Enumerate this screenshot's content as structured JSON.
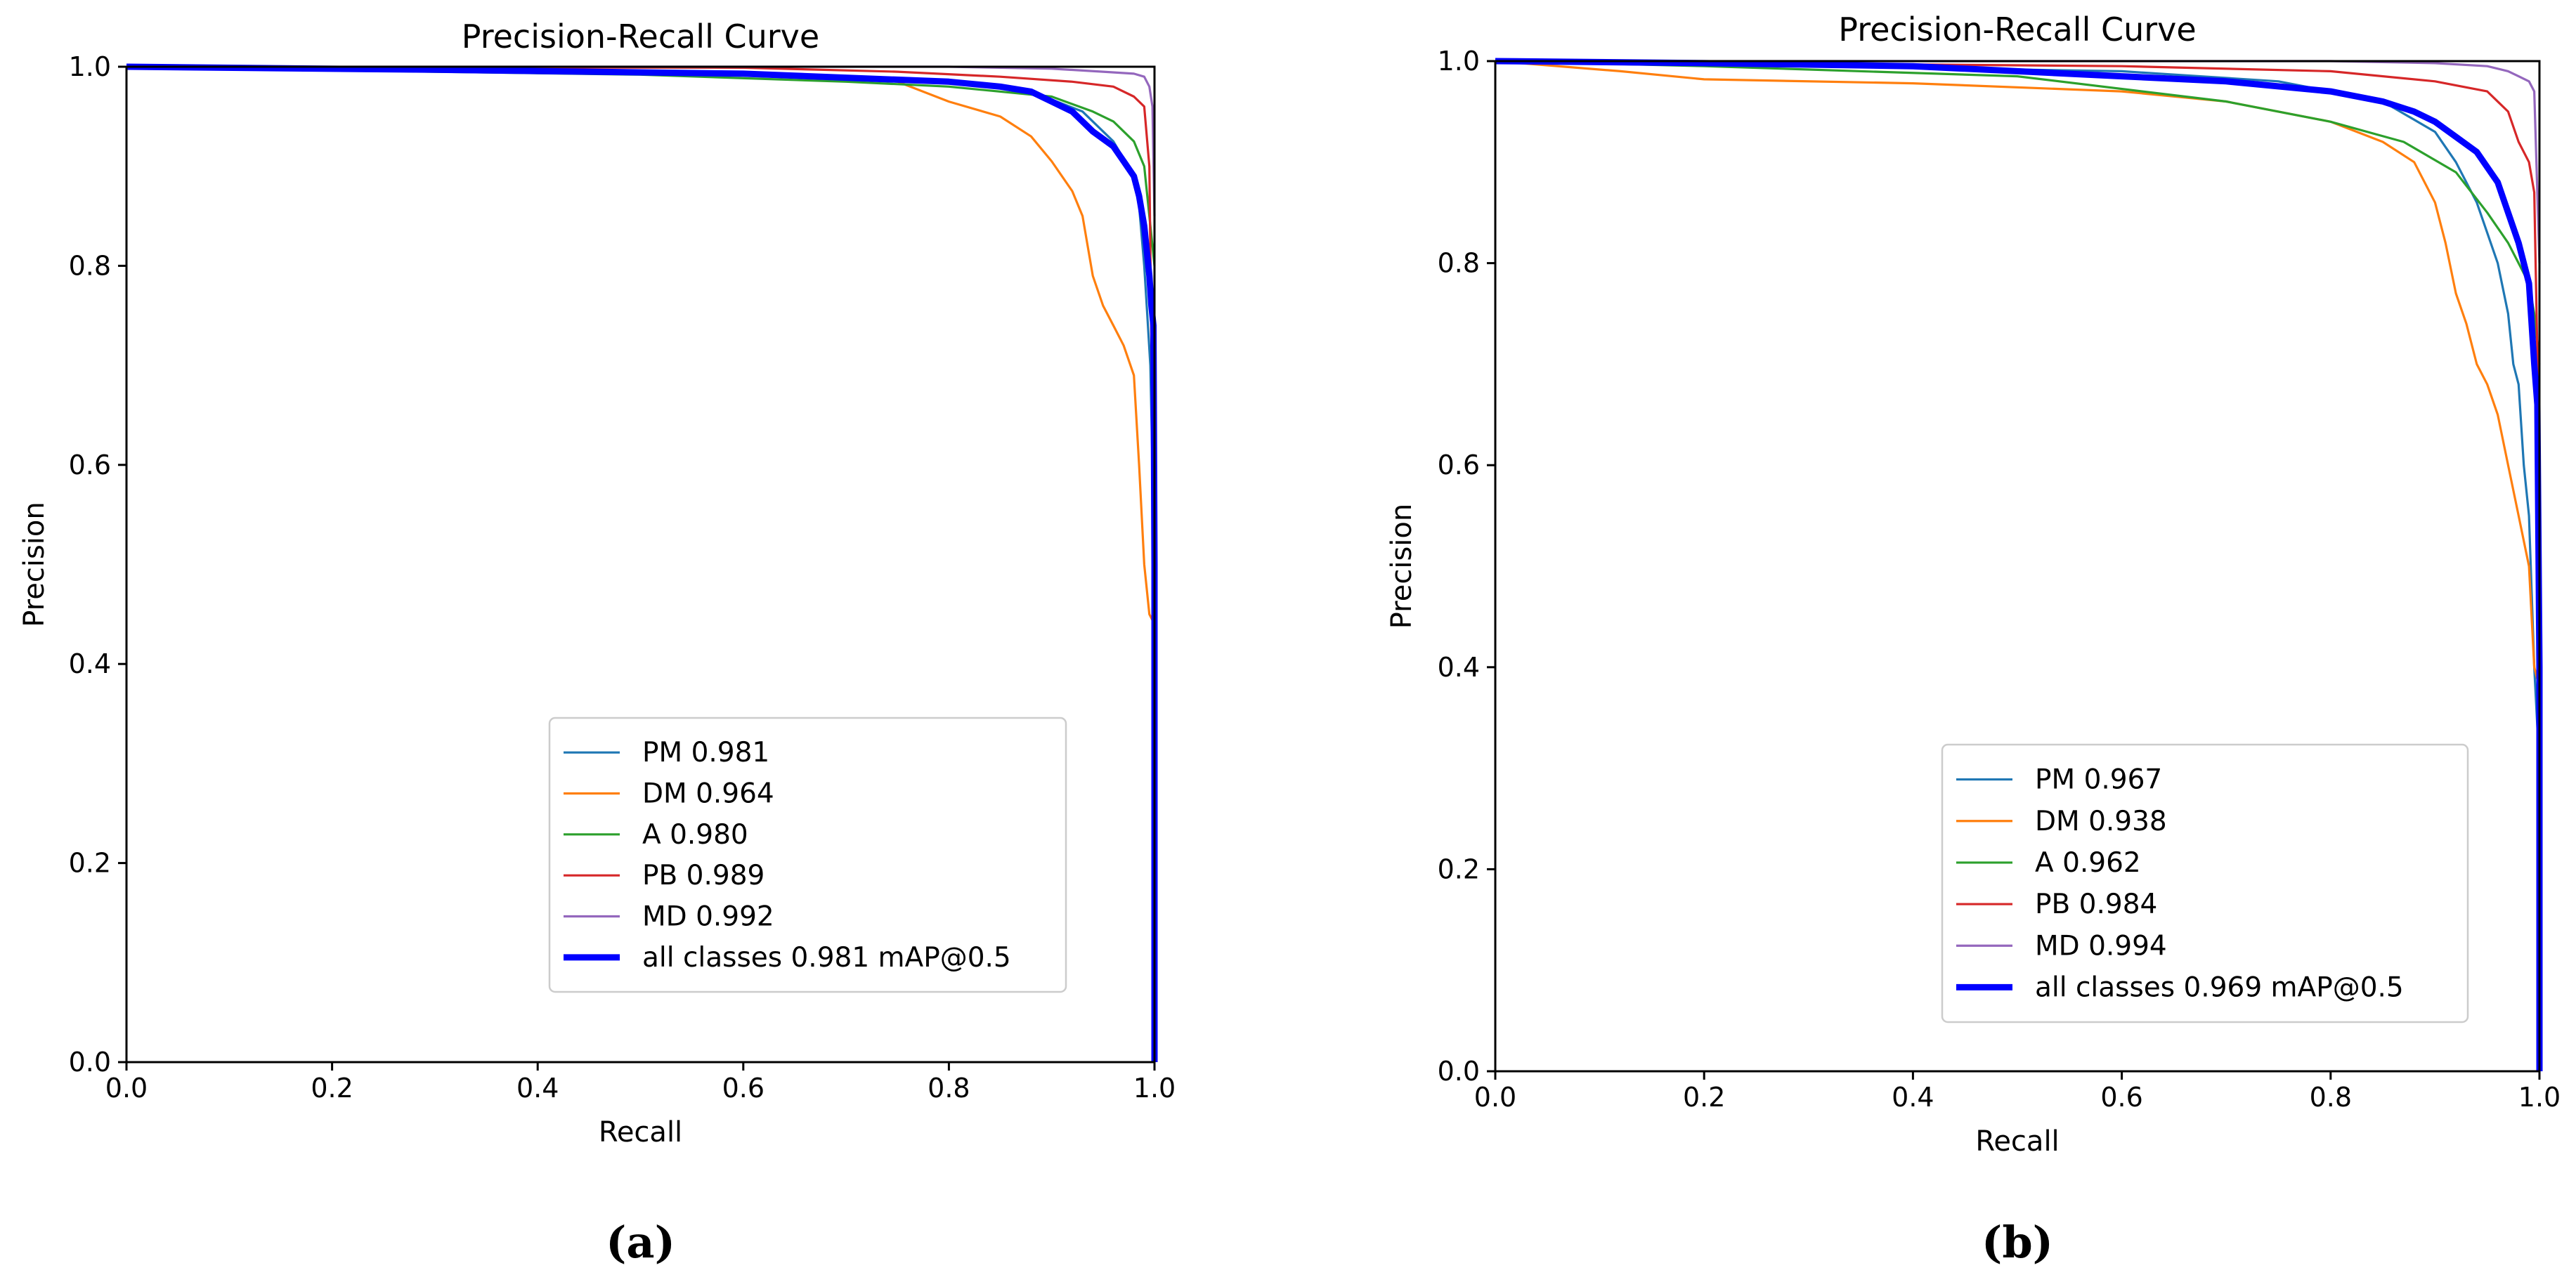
{
  "chart_data": [
    {
      "type": "line",
      "id": "a",
      "title": "Precision-Recall Curve",
      "xlabel": "Recall",
      "ylabel": "Precision",
      "xlim": [
        0,
        1
      ],
      "ylim": [
        0,
        1
      ],
      "x_ticks": [
        "0.0",
        "0.2",
        "0.4",
        "0.6",
        "0.8",
        "1.0"
      ],
      "y_ticks": [
        "0.0",
        "0.2",
        "0.4",
        "0.6",
        "0.8",
        "1.0"
      ],
      "legend_position": "lower-right",
      "caption": "(a)",
      "series": [
        {
          "name": "PM 0.981",
          "color": "#1f77b4",
          "width": "thin",
          "x": [
            0,
            0.3,
            0.6,
            0.8,
            0.88,
            0.93,
            0.96,
            0.98,
            0.985,
            0.99,
            0.993,
            0.996,
            0.998,
            1.0,
            1.0
          ],
          "y": [
            1.0,
            0.997,
            0.993,
            0.985,
            0.975,
            0.955,
            0.925,
            0.89,
            0.86,
            0.8,
            0.75,
            0.7,
            0.6,
            0.3,
            0
          ]
        },
        {
          "name": "DM 0.964",
          "color": "#ff7f0e",
          "width": "thin",
          "x": [
            0,
            0.1,
            0.4,
            0.7,
            0.75,
            0.8,
            0.85,
            0.88,
            0.9,
            0.92,
            0.93,
            0.935,
            0.94,
            0.95,
            0.96,
            0.97,
            0.98,
            0.985,
            0.99,
            0.995,
            1.0
          ],
          "y": [
            1.0,
            0.998,
            0.995,
            0.99,
            0.985,
            0.965,
            0.95,
            0.93,
            0.905,
            0.875,
            0.85,
            0.82,
            0.79,
            0.76,
            0.74,
            0.72,
            0.69,
            0.6,
            0.5,
            0.45,
            0.44
          ]
        },
        {
          "name": "A 0.980",
          "color": "#2ca02c",
          "width": "thin",
          "x": [
            0,
            0.3,
            0.5,
            0.7,
            0.8,
            0.9,
            0.94,
            0.96,
            0.98,
            0.99,
            0.995,
            1.0
          ],
          "y": [
            1.0,
            0.995,
            0.992,
            0.985,
            0.98,
            0.97,
            0.955,
            0.945,
            0.925,
            0.9,
            0.85,
            0.8
          ]
        },
        {
          "name": "PB 0.989",
          "color": "#d62728",
          "width": "thin",
          "x": [
            0,
            0.6,
            0.75,
            0.85,
            0.92,
            0.96,
            0.98,
            0.99,
            0.995,
            1.0
          ],
          "y": [
            1.0,
            0.999,
            0.995,
            0.99,
            0.985,
            0.98,
            0.97,
            0.96,
            0.9,
            0.45
          ]
        },
        {
          "name": "MD 0.992",
          "color": "#9467bd",
          "width": "thin",
          "x": [
            0,
            0.8,
            0.9,
            0.95,
            0.98,
            0.99,
            0.995,
            0.998,
            1.0
          ],
          "y": [
            1.0,
            1.0,
            0.998,
            0.995,
            0.993,
            0.99,
            0.98,
            0.96,
            0.85
          ]
        },
        {
          "name": "all classes 0.981 mAP@0.5",
          "color": "#0000ff",
          "width": "thick",
          "x": [
            0,
            0.3,
            0.6,
            0.8,
            0.85,
            0.88,
            0.9,
            0.92,
            0.94,
            0.96,
            0.97,
            0.98,
            0.985,
            0.99,
            0.995,
            0.997,
            0.999,
            1.0,
            1.0
          ],
          "y": [
            1.0,
            0.997,
            0.993,
            0.985,
            0.98,
            0.975,
            0.965,
            0.955,
            0.935,
            0.92,
            0.905,
            0.89,
            0.87,
            0.84,
            0.79,
            0.76,
            0.74,
            0.5,
            0
          ]
        }
      ]
    },
    {
      "type": "line",
      "id": "b",
      "title": "Precision-Recall Curve",
      "xlabel": "Recall",
      "ylabel": "Precision",
      "xlim": [
        0,
        1
      ],
      "ylim": [
        0,
        1
      ],
      "x_ticks": [
        "0.0",
        "0.2",
        "0.4",
        "0.6",
        "0.8",
        "1.0"
      ],
      "y_ticks": [
        "0.0",
        "0.2",
        "0.4",
        "0.6",
        "0.8",
        "1.0"
      ],
      "legend_position": "lower-right",
      "caption": "(b)",
      "series": [
        {
          "name": "PM 0.967",
          "color": "#1f77b4",
          "width": "thin",
          "x": [
            0,
            0.3,
            0.6,
            0.75,
            0.85,
            0.9,
            0.92,
            0.94,
            0.96,
            0.97,
            0.975,
            0.98,
            0.985,
            0.99,
            0.995,
            1.0
          ],
          "y": [
            1.0,
            0.995,
            0.99,
            0.98,
            0.96,
            0.93,
            0.9,
            0.86,
            0.8,
            0.75,
            0.7,
            0.68,
            0.6,
            0.55,
            0.4,
            0.3
          ]
        },
        {
          "name": "DM 0.938",
          "color": "#ff7f0e",
          "width": "thin",
          "x": [
            0,
            0.12,
            0.2,
            0.4,
            0.6,
            0.7,
            0.8,
            0.85,
            0.88,
            0.9,
            0.91,
            0.92,
            0.93,
            0.94,
            0.95,
            0.96,
            0.97,
            0.98,
            0.99,
            0.995,
            1.0
          ],
          "y": [
            1.0,
            0.99,
            0.982,
            0.978,
            0.97,
            0.96,
            0.94,
            0.92,
            0.9,
            0.86,
            0.82,
            0.77,
            0.74,
            0.7,
            0.68,
            0.65,
            0.6,
            0.55,
            0.5,
            0.4,
            0.38
          ]
        },
        {
          "name": "A 0.962",
          "color": "#2ca02c",
          "width": "thin",
          "x": [
            0,
            0.2,
            0.5,
            0.7,
            0.8,
            0.87,
            0.92,
            0.95,
            0.97,
            0.98,
            0.99,
            0.995,
            1.0
          ],
          "y": [
            1.0,
            0.995,
            0.985,
            0.96,
            0.94,
            0.92,
            0.89,
            0.85,
            0.82,
            0.8,
            0.78,
            0.75,
            0.7
          ]
        },
        {
          "name": "PB 0.984",
          "color": "#d62728",
          "width": "thin",
          "x": [
            0,
            0.6,
            0.8,
            0.9,
            0.95,
            0.97,
            0.98,
            0.99,
            0.995,
            1.0
          ],
          "y": [
            1.0,
            0.995,
            0.99,
            0.98,
            0.97,
            0.95,
            0.92,
            0.9,
            0.87,
            0.6
          ]
        },
        {
          "name": "MD 0.994",
          "color": "#9467bd",
          "width": "thin",
          "x": [
            0,
            0.8,
            0.9,
            0.95,
            0.97,
            0.98,
            0.99,
            0.995,
            1.0
          ],
          "y": [
            1.0,
            1.0,
            0.998,
            0.995,
            0.99,
            0.985,
            0.98,
            0.97,
            0.8
          ]
        },
        {
          "name": "all classes 0.969 mAP@0.5",
          "color": "#0000ff",
          "width": "thick",
          "x": [
            0,
            0.2,
            0.4,
            0.6,
            0.7,
            0.8,
            0.85,
            0.88,
            0.9,
            0.92,
            0.94,
            0.96,
            0.97,
            0.98,
            0.99,
            0.995,
            0.998,
            1.0,
            1.0
          ],
          "y": [
            1.0,
            0.998,
            0.995,
            0.985,
            0.98,
            0.97,
            0.96,
            0.95,
            0.94,
            0.925,
            0.91,
            0.88,
            0.85,
            0.82,
            0.78,
            0.7,
            0.66,
            0.4,
            0
          ]
        }
      ]
    }
  ]
}
